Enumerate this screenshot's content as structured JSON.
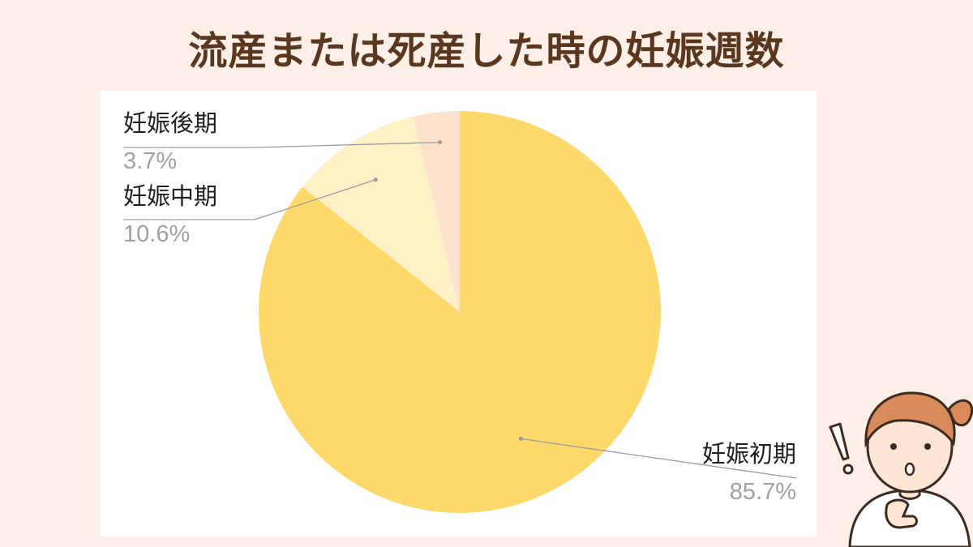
{
  "page": {
    "title": "流産または死産した時の妊娠週数",
    "background_color": "#fcefe7",
    "title_color": "#5a3820"
  },
  "chart_data": {
    "type": "pie",
    "start": "12 o'clock",
    "direction": "clockwise",
    "slices": [
      {
        "label": "妊娠初期",
        "value": 85.7,
        "value_label": "85.7%",
        "color": "#fdd86a"
      },
      {
        "label": "妊娠中期",
        "value": 10.6,
        "value_label": "10.6%",
        "color": "#fff0c6"
      },
      {
        "label": "妊娠後期",
        "value": 3.7,
        "value_label": "3.7%",
        "color": "#fde2cd"
      }
    ]
  },
  "illustration": {
    "icon": "surprised-woman-icon",
    "exclamation_icon": "exclamation-icon",
    "hair_color": "#d98a5a",
    "skin_color": "#fde6d3"
  }
}
